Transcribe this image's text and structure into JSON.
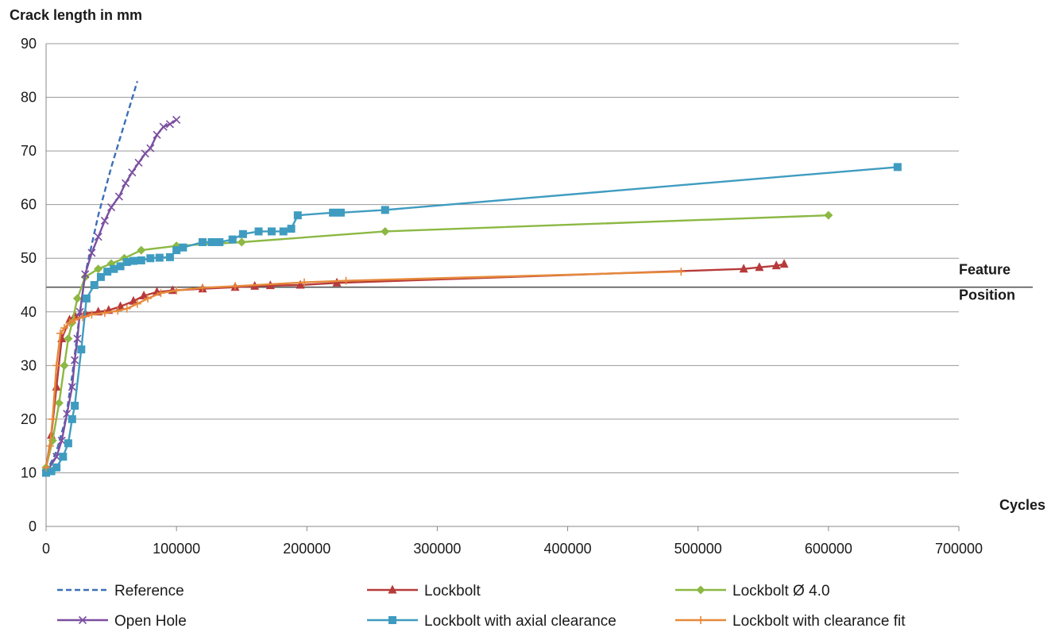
{
  "chart_data": {
    "type": "line",
    "ylabel": "Crack length in mm",
    "xlabel": "Cycles",
    "annotation": "Feature\nPosition",
    "feature_position_y": 44.6,
    "xlim": [
      0,
      700000
    ],
    "ylim": [
      0,
      90
    ],
    "x_ticks": [
      0,
      100000,
      200000,
      300000,
      400000,
      500000,
      600000,
      700000
    ],
    "y_ticks": [
      0,
      10,
      20,
      30,
      40,
      50,
      60,
      70,
      80,
      90
    ],
    "grid": "horizontal",
    "legend_position": "bottom",
    "series": [
      {
        "name": "Reference",
        "color": "#3b6fb6",
        "dash": true,
        "marker": "none",
        "points": [
          [
            0,
            10
          ],
          [
            8000,
            14
          ],
          [
            15000,
            20
          ],
          [
            20000,
            28
          ],
          [
            25000,
            38
          ],
          [
            30000,
            47
          ],
          [
            40000,
            58
          ],
          [
            50000,
            67
          ],
          [
            60000,
            75
          ],
          [
            70000,
            83
          ]
        ]
      },
      {
        "name": "Lockbolt",
        "color": "#b73a3a",
        "dash": false,
        "marker": "triangle",
        "points": [
          [
            0,
            11
          ],
          [
            4000,
            17
          ],
          [
            8000,
            26
          ],
          [
            12000,
            35
          ],
          [
            18000,
            38.5
          ],
          [
            22000,
            39.3
          ],
          [
            30000,
            39.7
          ],
          [
            40000,
            40
          ],
          [
            48000,
            40.3
          ],
          [
            57000,
            41
          ],
          [
            67000,
            42
          ],
          [
            75000,
            43
          ],
          [
            85000,
            43.7
          ],
          [
            97000,
            44
          ],
          [
            120000,
            44.3
          ],
          [
            145000,
            44.6
          ],
          [
            160000,
            44.8
          ],
          [
            172000,
            44.9
          ],
          [
            195000,
            45
          ],
          [
            223000,
            45.4
          ],
          [
            535000,
            48
          ],
          [
            547000,
            48.3
          ],
          [
            560000,
            48.6
          ],
          [
            566000,
            48.9
          ]
        ]
      },
      {
        "name": "Lockbolt Ø 4.0",
        "color": "#8cb843",
        "dash": false,
        "marker": "diamond",
        "points": [
          [
            0,
            11
          ],
          [
            5000,
            16
          ],
          [
            10000,
            23
          ],
          [
            14000,
            30
          ],
          [
            17000,
            35
          ],
          [
            20000,
            38
          ],
          [
            24000,
            42.5
          ],
          [
            30000,
            46.5
          ],
          [
            40000,
            48
          ],
          [
            50000,
            49
          ],
          [
            60000,
            50
          ],
          [
            73000,
            51.5
          ],
          [
            100000,
            52.3
          ],
          [
            150000,
            53
          ],
          [
            260000,
            55
          ],
          [
            600000,
            58
          ]
        ]
      },
      {
        "name": "Open Hole",
        "color": "#7b4fa0",
        "dash": false,
        "marker": "x",
        "points": [
          [
            0,
            10
          ],
          [
            8000,
            13
          ],
          [
            12000,
            16
          ],
          [
            16000,
            21
          ],
          [
            20000,
            26
          ],
          [
            22000,
            31
          ],
          [
            24000,
            35
          ],
          [
            26000,
            40
          ],
          [
            30000,
            47
          ],
          [
            35000,
            51
          ],
          [
            40000,
            54
          ],
          [
            45000,
            57
          ],
          [
            50000,
            59.5
          ],
          [
            56000,
            61.5
          ],
          [
            61000,
            64
          ],
          [
            66000,
            66
          ],
          [
            71000,
            67.8
          ],
          [
            76000,
            69.5
          ],
          [
            80000,
            70.5
          ],
          [
            85000,
            73
          ],
          [
            90000,
            74.5
          ],
          [
            95000,
            75
          ],
          [
            100000,
            75.8
          ]
        ]
      },
      {
        "name": "Lockbolt with axial clearance",
        "color": "#3f9cc0",
        "dash": false,
        "marker": "square",
        "points": [
          [
            0,
            10
          ],
          [
            4000,
            10.3
          ],
          [
            8000,
            11
          ],
          [
            13000,
            13
          ],
          [
            17000,
            15.5
          ],
          [
            20000,
            20
          ],
          [
            22000,
            22.5
          ],
          [
            27000,
            33
          ],
          [
            31000,
            42.5
          ],
          [
            37000,
            45
          ],
          [
            42000,
            46.5
          ],
          [
            47000,
            47.5
          ],
          [
            52000,
            48
          ],
          [
            57000,
            48.5
          ],
          [
            62000,
            49.3
          ],
          [
            67000,
            49.5
          ],
          [
            73000,
            49.6
          ],
          [
            80000,
            50
          ],
          [
            87000,
            50.1
          ],
          [
            95000,
            50.2
          ],
          [
            100000,
            51.5
          ],
          [
            105000,
            52
          ],
          [
            120000,
            53
          ],
          [
            127000,
            53
          ],
          [
            133000,
            53
          ],
          [
            143000,
            53.5
          ],
          [
            151000,
            54.5
          ],
          [
            163000,
            55
          ],
          [
            173000,
            55
          ],
          [
            182000,
            55
          ],
          [
            188000,
            55.5
          ],
          [
            193000,
            58
          ],
          [
            220000,
            58.5
          ],
          [
            226000,
            58.5
          ],
          [
            260000,
            59
          ],
          [
            653000,
            67
          ]
        ]
      },
      {
        "name": "Lockbolt with clearance fit",
        "color": "#e6893a",
        "dash": false,
        "marker": "plus",
        "points": [
          [
            0,
            11
          ],
          [
            3000,
            15
          ],
          [
            5000,
            20
          ],
          [
            8000,
            30
          ],
          [
            11000,
            36
          ],
          [
            14000,
            37
          ],
          [
            18000,
            38
          ],
          [
            22000,
            38.5
          ],
          [
            28000,
            39
          ],
          [
            35000,
            39.5
          ],
          [
            45000,
            39.8
          ],
          [
            55000,
            40.2
          ],
          [
            62000,
            40.6
          ],
          [
            70000,
            41.5
          ],
          [
            78000,
            42.5
          ],
          [
            88000,
            43.5
          ],
          [
            100000,
            44
          ],
          [
            120000,
            44.5
          ],
          [
            145000,
            44.8
          ],
          [
            198000,
            45.5
          ],
          [
            230000,
            45.8
          ],
          [
            487000,
            47.5
          ]
        ]
      }
    ]
  }
}
